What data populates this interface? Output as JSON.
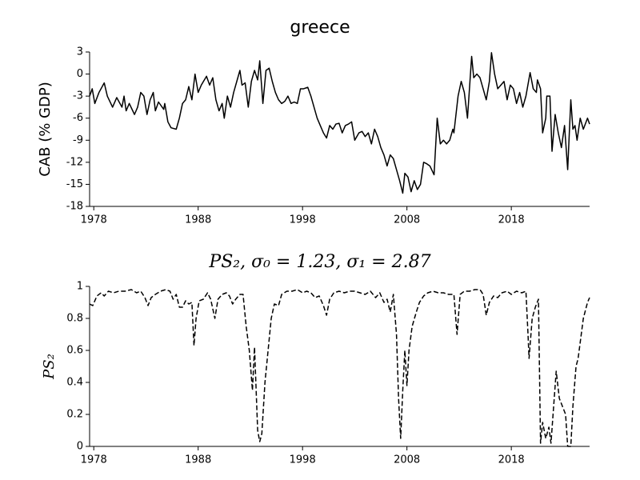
{
  "chart_data": [
    {
      "type": "line",
      "title": "greece",
      "ylabel": "CAB (% GDP)",
      "color": "#000000",
      "linestyle": "solid",
      "xlim": [
        1977.6,
        2025.5
      ],
      "xticks": [
        1978,
        1988,
        1998,
        2008,
        2018
      ],
      "ylim": [
        -18,
        3
      ],
      "yticks": [
        3,
        0,
        -3,
        -6,
        -9,
        -12,
        -15,
        -18
      ],
      "x": [
        1977.6,
        1977.85,
        1978.1,
        1978.5,
        1979.0,
        1979.3,
        1979.8,
        1980.2,
        1980.7,
        1980.9,
        1981.1,
        1981.4,
        1981.9,
        1982.2,
        1982.5,
        1982.8,
        1983.1,
        1983.4,
        1983.7,
        1983.9,
        1984.2,
        1984.7,
        1984.8,
        1985.1,
        1985.4,
        1985.9,
        1986.2,
        1986.5,
        1986.8,
        1987.1,
        1987.4,
        1987.7,
        1988.0,
        1988.3,
        1988.8,
        1989.1,
        1989.4,
        1989.7,
        1990.0,
        1990.3,
        1990.5,
        1990.8,
        1991.1,
        1991.4,
        1991.7,
        1992.0,
        1992.2,
        1992.5,
        1992.8,
        1993.1,
        1993.4,
        1993.7,
        1993.9,
        1994.2,
        1994.5,
        1994.8,
        1995.1,
        1995.4,
        1995.7,
        1996.0,
        1996.3,
        1996.6,
        1996.9,
        1997.2,
        1997.5,
        1997.8,
        1998.1,
        1998.5,
        1998.8,
        1999.1,
        1999.4,
        1999.7,
        2000.0,
        2000.3,
        2000.6,
        2000.9,
        2001.2,
        2001.5,
        2001.8,
        2002.1,
        2002.4,
        2002.7,
        2003.0,
        2003.4,
        2003.7,
        2004.0,
        2004.3,
        2004.6,
        2004.9,
        2005.2,
        2005.5,
        2005.8,
        2006.1,
        2006.4,
        2006.7,
        2007.0,
        2007.3,
        2007.6,
        2007.8,
        2008.1,
        2008.4,
        2008.7,
        2009.0,
        2009.3,
        2009.6,
        2009.9,
        2010.2,
        2010.6,
        2010.9,
        2011.2,
        2011.5,
        2011.8,
        2012.1,
        2012.4,
        2012.5,
        2012.9,
        2013.2,
        2013.5,
        2013.8,
        2014.2,
        2014.4,
        2014.7,
        2015.0,
        2015.3,
        2015.6,
        2015.9,
        2016.1,
        2016.4,
        2016.7,
        2017.0,
        2017.3,
        2017.6,
        2017.9,
        2018.2,
        2018.5,
        2018.8,
        2019.1,
        2019.4,
        2019.8,
        2020.1,
        2020.4,
        2020.5,
        2020.8,
        2021.0,
        2021.3,
        2021.4,
        2021.7,
        2021.9,
        2022.2,
        2022.5,
        2022.8,
        2023.1,
        2023.4,
        2023.7,
        2023.9,
        2024.1,
        2024.3,
        2024.6,
        2024.9,
        2025.3,
        2025.5
      ],
      "values": [
        -3,
        -2,
        -4,
        -2.5,
        -1.2,
        -3,
        -4.5,
        -3.2,
        -4.5,
        -3,
        -5,
        -4,
        -5.5,
        -4.5,
        -2.5,
        -3,
        -5.5,
        -3.5,
        -2.5,
        -5,
        -3.8,
        -4.8,
        -4,
        -6.5,
        -7.3,
        -7.5,
        -6,
        -4,
        -3.5,
        -1.7,
        -3.5,
        0,
        -2.5,
        -1.5,
        -0.3,
        -1.5,
        -0.5,
        -3.5,
        -5,
        -4,
        -6,
        -3,
        -4.5,
        -2.5,
        -1,
        0.5,
        -1.5,
        -1.2,
        -4.5,
        -1,
        0.5,
        -0.8,
        1.8,
        -4,
        0.5,
        0.8,
        -1,
        -2.5,
        -3.5,
        -4,
        -3.7,
        -3,
        -4,
        -3.8,
        -4,
        -2,
        -2,
        -1.8,
        -3,
        -4.5,
        -6,
        -7,
        -8,
        -8.7,
        -7,
        -7.5,
        -6.8,
        -6.7,
        -8,
        -7,
        -6.8,
        -6.5,
        -9,
        -8,
        -7.8,
        -8.5,
        -8,
        -9.5,
        -7.5,
        -8.5,
        -10,
        -11,
        -12.5,
        -11,
        -11.5,
        -13,
        -14.5,
        -16.2,
        -13.5,
        -14,
        -16,
        -14.5,
        -15.7,
        -15,
        -12,
        -12.2,
        -12.5,
        -13.7,
        -6,
        -9.5,
        -9,
        -9.5,
        -9,
        -7.5,
        -8,
        -3,
        -1,
        -2.5,
        -6,
        2.4,
        -0.5,
        0,
        -0.5,
        -2,
        -3.5,
        -1,
        2.9,
        0,
        -2,
        -1.5,
        -1,
        -3.5,
        -1.5,
        -2,
        -4,
        -2.5,
        -4.5,
        -3,
        0.2,
        -2,
        -2.5,
        -0.8,
        -2,
        -8,
        -6,
        -3,
        -3,
        -10.5,
        -5.5,
        -8,
        -10,
        -7,
        -13,
        -3.5,
        -7.5,
        -7,
        -9,
        -6,
        -7.5,
        -6,
        -6.8
      ]
    },
    {
      "type": "line",
      "title": "PS₂, σ₀ = 1.23, σ₁ = 2.87",
      "ylabel": "PS₂",
      "color": "#000000",
      "linestyle": "dashed",
      "xlim": [
        1977.6,
        2025.5
      ],
      "xticks": [
        1978,
        1988,
        1998,
        2008,
        2018
      ],
      "ylim": [
        0,
        1
      ],
      "yticks": [
        0,
        0.2,
        0.4,
        0.6,
        0.8,
        1
      ],
      "x": [
        1977.6,
        1977.9,
        1978.3,
        1978.7,
        1979.0,
        1979.4,
        1979.9,
        1980.4,
        1981.0,
        1981.6,
        1982.1,
        1982.5,
        1982.9,
        1983.2,
        1983.5,
        1983.9,
        1984.4,
        1984.9,
        1985.3,
        1985.6,
        1985.9,
        1986.2,
        1986.5,
        1986.8,
        1987.1,
        1987.4,
        1987.6,
        1987.8,
        1988.1,
        1988.5,
        1988.9,
        1989.2,
        1989.6,
        1989.9,
        1990.3,
        1990.7,
        1991.0,
        1991.3,
        1991.6,
        1992.0,
        1992.3,
        1992.6,
        1992.9,
        1993.2,
        1993.4,
        1993.7,
        1993.9,
        1994.1,
        1994.4,
        1994.7,
        1995.0,
        1995.3,
        1995.7,
        1996.0,
        1996.5,
        1997.0,
        1997.5,
        1998.0,
        1998.4,
        1998.8,
        1999.2,
        1999.6,
        2000.0,
        2000.3,
        2000.6,
        2001.0,
        2001.5,
        2002.0,
        2002.5,
        2003.0,
        2003.5,
        2004.0,
        2004.5,
        2005.0,
        2005.4,
        2005.8,
        2006.1,
        2006.4,
        2006.7,
        2007.0,
        2007.2,
        2007.4,
        2007.6,
        2007.8,
        2008.0,
        2008.2,
        2008.5,
        2008.9,
        2009.2,
        2009.6,
        2010.0,
        2010.5,
        2011.0,
        2011.5,
        2012.0,
        2012.5,
        2012.8,
        2013.1,
        2013.5,
        2014.0,
        2014.5,
        2015.0,
        2015.3,
        2015.6,
        2015.9,
        2016.3,
        2016.7,
        2017.1,
        2017.6,
        2018.0,
        2018.5,
        2019.0,
        2019.4,
        2019.6,
        2019.7,
        2020.0,
        2020.3,
        2020.6,
        2020.8,
        2021.0,
        2021.3,
        2021.6,
        2021.8,
        2022.0,
        2022.3,
        2022.6,
        2022.9,
        2023.2,
        2023.4,
        2023.7,
        2023.9,
        2024.2,
        2024.4,
        2024.9,
        2025.3,
        2025.5
      ],
      "values": [
        0.89,
        0.88,
        0.94,
        0.96,
        0.94,
        0.97,
        0.96,
        0.97,
        0.97,
        0.98,
        0.96,
        0.97,
        0.93,
        0.88,
        0.93,
        0.95,
        0.97,
        0.98,
        0.97,
        0.92,
        0.95,
        0.87,
        0.87,
        0.91,
        0.89,
        0.9,
        0.63,
        0.8,
        0.91,
        0.92,
        0.96,
        0.92,
        0.8,
        0.92,
        0.95,
        0.96,
        0.94,
        0.89,
        0.92,
        0.95,
        0.95,
        0.75,
        0.6,
        0.35,
        0.62,
        0.1,
        0.03,
        0.08,
        0.4,
        0.6,
        0.8,
        0.89,
        0.88,
        0.95,
        0.97,
        0.97,
        0.98,
        0.96,
        0.97,
        0.96,
        0.93,
        0.94,
        0.88,
        0.82,
        0.92,
        0.96,
        0.97,
        0.96,
        0.97,
        0.97,
        0.96,
        0.95,
        0.97,
        0.93,
        0.96,
        0.9,
        0.92,
        0.84,
        0.95,
        0.7,
        0.3,
        0.05,
        0.35,
        0.6,
        0.38,
        0.6,
        0.75,
        0.84,
        0.9,
        0.94,
        0.96,
        0.97,
        0.96,
        0.96,
        0.95,
        0.95,
        0.7,
        0.95,
        0.97,
        0.97,
        0.98,
        0.98,
        0.95,
        0.82,
        0.9,
        0.94,
        0.93,
        0.96,
        0.97,
        0.95,
        0.97,
        0.96,
        0.97,
        0.7,
        0.55,
        0.8,
        0.87,
        0.92,
        0.02,
        0.15,
        0.05,
        0.12,
        0.02,
        0.2,
        0.47,
        0.3,
        0.25,
        0.2,
        0,
        0,
        0.25,
        0.5,
        0.55,
        0.8,
        0.9,
        0.93
      ]
    }
  ]
}
